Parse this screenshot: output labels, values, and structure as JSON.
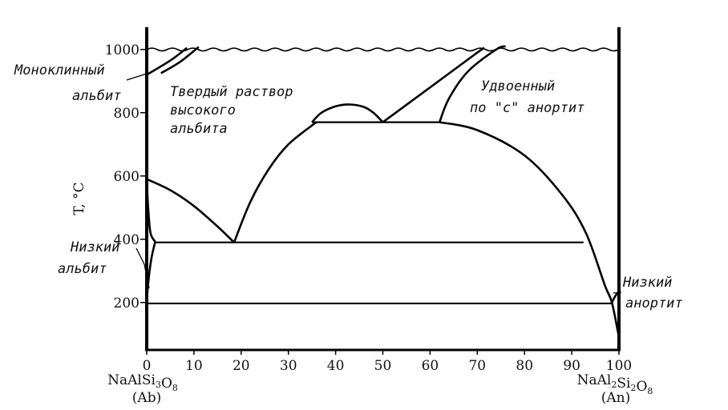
{
  "chart_data": {
    "type": "line",
    "title": "",
    "xlabel": "",
    "ylabel": "T, °C",
    "xlim": [
      0,
      100
    ],
    "ylim": [
      50,
      1050
    ],
    "x_ticks": [
      0,
      10,
      20,
      30,
      40,
      50,
      60,
      70,
      80,
      90,
      100
    ],
    "y_ticks": [
      200,
      400,
      600,
      800,
      1000
    ],
    "grid": false,
    "left_end": {
      "formula": "NaAlSi3O8",
      "abbr": "(Ab)"
    },
    "right_end": {
      "formula": "NaAl2Si2O8",
      "abbr": "(An)"
    },
    "melting_line_T": 1000,
    "curves": [
      {
        "points": [
          [
            0,
            590
          ],
          [
            5,
            555
          ],
          [
            10,
            505
          ],
          [
            15,
            440
          ],
          [
            18.5,
            390
          ]
        ]
      },
      {
        "points": [
          [
            18.5,
            390
          ],
          [
            22,
            520
          ],
          [
            26,
            625
          ],
          [
            30,
            700
          ],
          [
            35,
            760
          ],
          [
            36,
            770
          ]
        ]
      },
      {
        "points": [
          [
            35,
            770
          ],
          [
            37,
            800
          ],
          [
            40,
            820
          ],
          [
            43,
            826
          ],
          [
            46,
            818
          ],
          [
            48,
            800
          ],
          [
            50,
            770
          ]
        ]
      },
      {
        "points": [
          [
            50,
            770
          ],
          [
            60,
            880
          ],
          [
            70,
            990
          ],
          [
            71.5,
            1005
          ]
        ]
      },
      {
        "points": [
          [
            62,
            770
          ],
          [
            64,
            845
          ],
          [
            68,
            930
          ],
          [
            74,
            1000
          ],
          [
            76,
            1010
          ]
        ]
      },
      {
        "points": [
          [
            62,
            770
          ],
          [
            70,
            745
          ],
          [
            80,
            665
          ],
          [
            88,
            540
          ],
          [
            93,
            420
          ],
          [
            97,
            255
          ],
          [
            98.5,
            200
          ],
          [
            100,
            90
          ]
        ]
      },
      {
        "points": [
          [
            0,
            920
          ],
          [
            5,
            965
          ],
          [
            8.5,
            1005
          ]
        ]
      },
      {
        "points": [
          [
            3,
            925
          ],
          [
            7,
            960
          ],
          [
            11,
            1008
          ]
        ]
      },
      {
        "points": [
          [
            0,
            590
          ],
          [
            0.3,
            500
          ],
          [
            0.8,
            420
          ],
          [
            1.8,
            392
          ]
        ]
      },
      {
        "points": [
          [
            1.8,
            392
          ],
          [
            1,
            340
          ],
          [
            0.3,
            260
          ],
          [
            0,
            200
          ]
        ]
      },
      {
        "points": [
          [
            98.5,
            200
          ],
          [
            99.2,
            220
          ],
          [
            100,
            235
          ]
        ]
      }
    ],
    "horizontal_lines": [
      {
        "T": 770,
        "x_from": 35,
        "x_to": 62
      },
      {
        "T": 390,
        "x_from": 1.8,
        "x_to": 92.5
      },
      {
        "T": 197,
        "x_from": 0,
        "x_to": 98.5
      }
    ],
    "annotations": [
      {
        "lines": [
          "Моноклинный",
          "альбит"
        ]
      },
      {
        "lines": [
          "Твердый раствор",
          "высокого",
          "альбита"
        ]
      },
      {
        "lines": [
          "Удвоенный",
          "по \"c\" анортит"
        ]
      },
      {
        "lines": [
          "Низкий",
          "альбит"
        ]
      },
      {
        "lines": [
          "Низкий",
          "анортит"
        ]
      }
    ]
  }
}
